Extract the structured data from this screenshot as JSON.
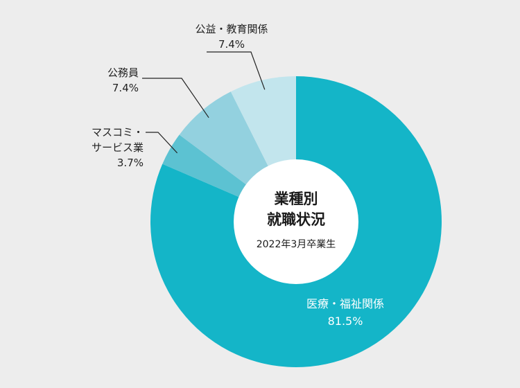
{
  "chart_data": {
    "type": "pie",
    "donut": true,
    "title": "業種別 就職状況",
    "title_lines": [
      "業種別",
      "就職状況"
    ],
    "subtitle": "2022年3月卒業生",
    "unit": "%",
    "slices": [
      {
        "label": "医療・福祉関係",
        "label_lines": [
          "医療・福祉関係"
        ],
        "value": 81.5,
        "value_text": "81.5%",
        "color": "#14b5c8"
      },
      {
        "label": "マスコミ・サービス業",
        "label_lines": [
          "マスコミ・",
          "サービス業"
        ],
        "value": 3.7,
        "value_text": "3.7%",
        "color": "#5cc2d2"
      },
      {
        "label": "公務員",
        "label_lines": [
          "公務員"
        ],
        "value": 7.4,
        "value_text": "7.4%",
        "color": "#93d1df"
      },
      {
        "label": "公益・教育関係",
        "label_lines": [
          "公益・教育関係"
        ],
        "value": 7.4,
        "value_text": "7.4%",
        "color": "#c2e5ed"
      }
    ]
  }
}
